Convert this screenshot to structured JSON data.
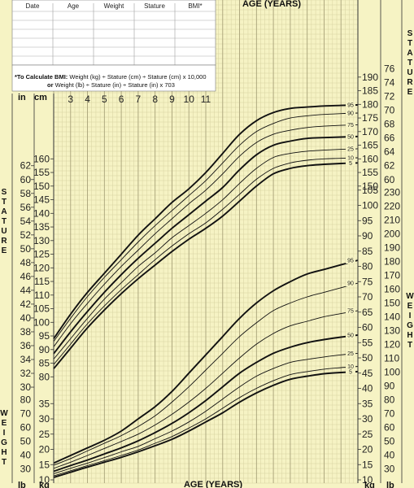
{
  "chart_data": {
    "type": "line",
    "title": "",
    "x_axis": {
      "label": "AGE (YEARS)",
      "range": [
        2,
        20
      ],
      "tick_labels": [
        "3",
        "4",
        "5",
        "6",
        "7",
        "8",
        "9",
        "10",
        "11"
      ]
    },
    "stature_cm_ticks": [
      "80",
      "85",
      "90",
      "95",
      "100",
      "105",
      "110",
      "115",
      "120",
      "125",
      "130",
      "135",
      "140",
      "145",
      "150",
      "155",
      "160"
    ],
    "stature_in_ticks": [
      "30",
      "32",
      "34",
      "36",
      "38",
      "40",
      "42",
      "44",
      "46",
      "48",
      "50",
      "52",
      "54",
      "56",
      "58",
      "60",
      "62"
    ],
    "right_stature_cm_ticks": [
      "150",
      "155",
      "160",
      "165",
      "170",
      "175",
      "180",
      "185",
      "190"
    ],
    "right_stature_in_ticks": [
      "60",
      "62",
      "64",
      "66",
      "68",
      "70",
      "72",
      "74",
      "76"
    ],
    "weight_kg_ticks": [
      "10",
      "15",
      "20",
      "25",
      "30",
      "35",
      "40",
      "45",
      "50",
      "55",
      "60",
      "65",
      "70",
      "75",
      "80",
      "85",
      "90",
      "95",
      "100",
      "105"
    ],
    "weight_lb_ticks": [
      "30",
      "40",
      "50",
      "60",
      "70",
      "80",
      "90",
      "100",
      "110",
      "120",
      "130",
      "140",
      "150",
      "160",
      "170",
      "180",
      "190",
      "200",
      "210",
      "220",
      "230"
    ],
    "left_weight_lb_ticks": [
      "30",
      "40",
      "50",
      "60",
      "70",
      "80"
    ],
    "left_weight_kg_ticks": [
      "10",
      "15",
      "20",
      "25",
      "30",
      "35"
    ],
    "stature": {
      "x": [
        2,
        3,
        4,
        5,
        6,
        7,
        8,
        9,
        10,
        11,
        12,
        13,
        14,
        15,
        16,
        17,
        18,
        19,
        20
      ],
      "series": [
        {
          "name": "95",
          "values": [
            94,
            103,
            111,
            118,
            125,
            132,
            138,
            144,
            149,
            155,
            162,
            169,
            174,
            177,
            178.5,
            179,
            179.4,
            179.6,
            179.8
          ]
        },
        {
          "name": "90",
          "values": [
            93,
            101.5,
            109.5,
            116.5,
            123,
            129.5,
            135.5,
            141,
            146.5,
            152,
            158.5,
            165,
            170,
            173,
            175,
            175.8,
            176.3,
            176.6,
            176.8
          ]
        },
        {
          "name": "75",
          "values": [
            91,
            99.5,
            107,
            114,
            120.5,
            126.5,
            132.5,
            138,
            143.5,
            148.5,
            154.5,
            161,
            166,
            169,
            170.5,
            171.5,
            172,
            172.3,
            172.5
          ]
        },
        {
          "name": "50",
          "values": [
            88.5,
            96.5,
            104,
            111,
            117.5,
            123.5,
            129,
            134.5,
            139.5,
            144.5,
            149.5,
            156,
            161.5,
            165,
            166.5,
            167.5,
            167.8,
            168,
            168.2
          ]
        },
        {
          "name": "25",
          "values": [
            86.5,
            94,
            101.5,
            108.5,
            114.5,
            120.5,
            125.5,
            131,
            135.5,
            140,
            145,
            151,
            156.5,
            160.5,
            162,
            162.8,
            163.2,
            163.5,
            163.7
          ]
        },
        {
          "name": "10",
          "values": [
            84.5,
            92,
            99.5,
            106,
            112,
            117.5,
            123,
            128,
            132.5,
            136.5,
            141.5,
            147,
            152.5,
            156.5,
            158.5,
            159.5,
            160,
            160.2,
            160.4
          ]
        },
        {
          "name": "5",
          "values": [
            83,
            90.5,
            98,
            104.5,
            110.5,
            116,
            121,
            126,
            130.5,
            134.5,
            139,
            144.5,
            150,
            154.5,
            156.5,
            157.5,
            158,
            158.3,
            158.5
          ]
        }
      ]
    },
    "weight": {
      "x": [
        2,
        3,
        4,
        5,
        6,
        7,
        8,
        9,
        10,
        11,
        12,
        13,
        14,
        15,
        16,
        17,
        18,
        19,
        20
      ],
      "series": [
        {
          "name": "95",
          "values": [
            15.5,
            18,
            20.5,
            23,
            26,
            30,
            34,
            39,
            45,
            51,
            57,
            63,
            68,
            72,
            75,
            77.5,
            79,
            80.5,
            82
          ]
        },
        {
          "name": "90",
          "values": [
            14.8,
            17,
            19.5,
            22,
            24.5,
            27.5,
            31,
            35.5,
            40.5,
            46,
            51.5,
            57,
            61.5,
            65.5,
            68,
            70,
            71.5,
            73,
            74.5
          ]
        },
        {
          "name": "75",
          "values": [
            13.8,
            15.8,
            18,
            20.3,
            22.6,
            25,
            28,
            31.5,
            35.5,
            40,
            45,
            50,
            54.5,
            58,
            60.5,
            62,
            63.5,
            64.5,
            65.5
          ]
        },
        {
          "name": "50",
          "values": [
            12.8,
            14.7,
            16.5,
            18.5,
            20.5,
            22.8,
            25.5,
            28.5,
            32,
            36,
            40.5,
            45,
            48.5,
            51.5,
            53.5,
            55,
            56,
            56.8,
            57.5
          ]
        },
        {
          "name": "25",
          "values": [
            12,
            13.8,
            15.5,
            17.3,
            19.2,
            21,
            23.5,
            26,
            29,
            32.5,
            36.5,
            40.5,
            44,
            46.5,
            48.5,
            49.5,
            50.3,
            51,
            51.5
          ]
        },
        {
          "name": "10",
          "values": [
            11.3,
            13,
            14.7,
            16.3,
            18,
            19.8,
            22,
            24.2,
            27,
            30,
            33.5,
            37,
            40,
            42.5,
            44.5,
            45.5,
            46.3,
            46.8,
            47.2
          ]
        },
        {
          "name": "5",
          "values": [
            10.8,
            12.5,
            14.2,
            15.8,
            17.4,
            19.2,
            21.2,
            23.3,
            26,
            29,
            32,
            35.5,
            38.5,
            41,
            43,
            44,
            44.8,
            45.2,
            45.5
          ]
        }
      ]
    }
  },
  "labels": {
    "age_top": "AGE (YEARS)",
    "age_bottom": "AGE (YEARS)",
    "in": "in",
    "cm": "cm",
    "lb": "lb",
    "kg": "kg",
    "stature_vertical": [
      "S",
      "T",
      "A",
      "T",
      "U",
      "R",
      "E"
    ],
    "weight_vertical": [
      "W",
      "E",
      "I",
      "G",
      "H",
      "T"
    ],
    "table_cols": [
      "Date",
      "Age",
      "Weight",
      "Stature",
      "BMI*"
    ],
    "bmi_line1_bold": "*To Calculate BMI:",
    "bmi_line1_rest": " Weight (kg) ÷ Stature (cm) ÷ Stature (cm) x 10,000",
    "bmi_line2_bold": "or",
    "bmi_line2_rest": " Weight (lb) ÷ Stature (in) ÷ Stature (in) x 703"
  },
  "colors": {
    "background": "#f6f3c4",
    "grid_minor": "#d7d2a0",
    "grid_major": "#a9a37a"
  }
}
